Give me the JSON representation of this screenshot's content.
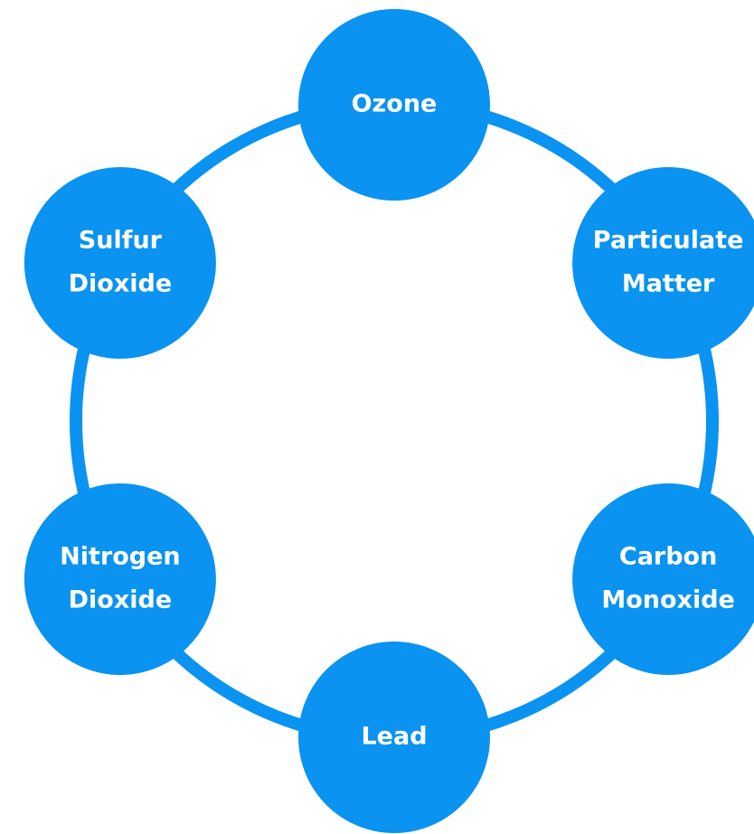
{
  "nodes": [
    {
      "lines": [
        "Ozone"
      ]
    },
    {
      "lines": [
        "Particulate",
        "Matter"
      ]
    },
    {
      "lines": [
        "Carbon",
        "Monoxide"
      ]
    },
    {
      "lines": [
        "Lead"
      ]
    },
    {
      "lines": [
        "Nitrogen",
        "Dioxide"
      ]
    },
    {
      "lines": [
        "Sulfur",
        "Dioxide"
      ]
    }
  ]
}
